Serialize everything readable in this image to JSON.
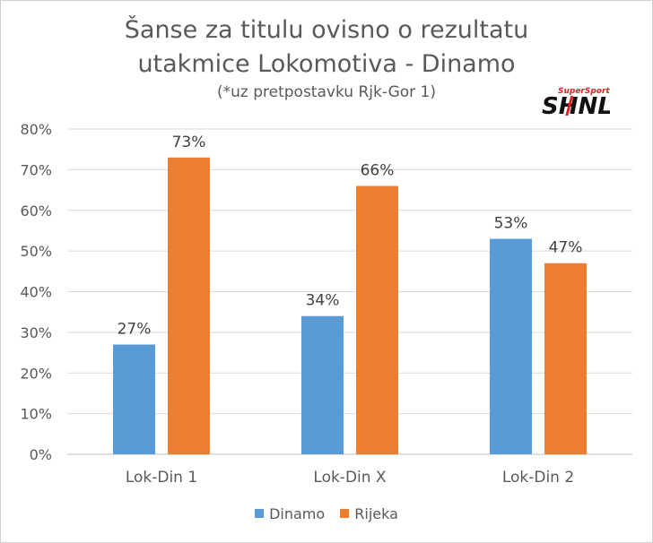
{
  "chart_data": {
    "type": "bar",
    "title_line1": "Šanse za titulu ovisno o rezultatu",
    "title_line2": "utakmice Lokomotiva - Dinamo",
    "subtitle": "(*uz pretpostavku Rjk-Gor 1)",
    "categories": [
      "Lok-Din 1",
      "Lok-Din X",
      "Lok-Din 2"
    ],
    "series": [
      {
        "name": "Dinamo",
        "values": [
          27,
          34,
          53
        ],
        "color": "#5b9bd5"
      },
      {
        "name": "Rijeka",
        "values": [
          73,
          66,
          47
        ],
        "color": "#ed7d31"
      }
    ],
    "data_labels": [
      [
        "27%",
        "34%",
        "53%"
      ],
      [
        "73%",
        "66%",
        "47%"
      ]
    ],
    "y_ticks": [
      "0%",
      "10%",
      "20%",
      "30%",
      "40%",
      "50%",
      "60%",
      "70%",
      "80%"
    ],
    "ylim": [
      0,
      80
    ],
    "grid": true,
    "legend_position": "bottom"
  },
  "logo": {
    "brand_small": "SuperSport",
    "brand_big": "SHNL",
    "colors": {
      "red": "#e31e24",
      "black": "#111111"
    }
  }
}
